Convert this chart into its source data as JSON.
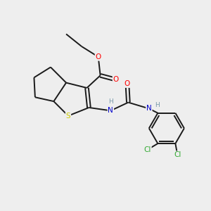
{
  "background_color": "#eeeeee",
  "bond_color": "#1a1a1a",
  "atom_colors": {
    "O": "#ff0000",
    "N": "#0000cc",
    "S": "#cccc00",
    "Cl": "#33aa33",
    "C": "#1a1a1a",
    "H": "#7799aa"
  },
  "figsize": [
    3.0,
    3.0
  ],
  "dpi": 100
}
